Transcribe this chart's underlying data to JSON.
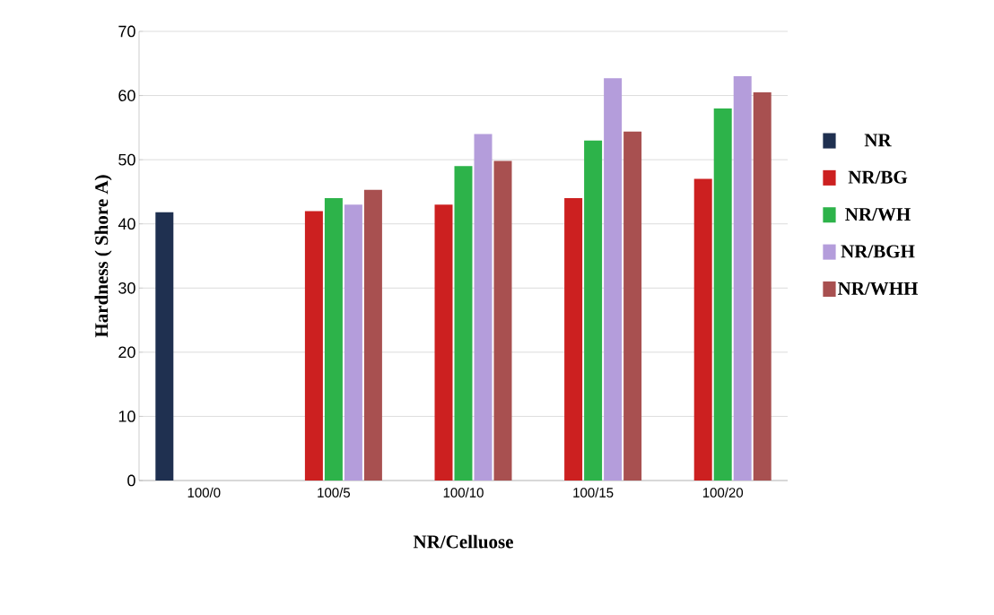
{
  "chart_data": {
    "type": "bar",
    "xlabel": "NR/Celluose",
    "ylabel": "Hardness ( Shore A)",
    "categories": [
      "100/0",
      "100/5",
      "100/10",
      "100/15",
      "100/20"
    ],
    "series": [
      {
        "name": "NR",
        "color": "#1f3050",
        "values": [
          41.8,
          null,
          null,
          null,
          null
        ]
      },
      {
        "name": "NR/BG",
        "color": "#cc2020",
        "values": [
          null,
          42,
          43,
          44,
          47
        ]
      },
      {
        "name": "NR/WH",
        "color": "#2db34a",
        "values": [
          null,
          44,
          49,
          53,
          58
        ]
      },
      {
        "name": "NR/BGH",
        "color": "#b49ddb",
        "values": [
          null,
          43,
          54,
          62.7,
          63
        ]
      },
      {
        "name": "NR/WHH",
        "color": "#a85050",
        "values": [
          null,
          45.3,
          49.8,
          54.4,
          60.5
        ]
      }
    ],
    "ylim": [
      0,
      70
    ],
    "yticks": [
      0,
      10,
      20,
      30,
      40,
      50,
      60,
      70
    ],
    "grid": "y",
    "legend": "right"
  }
}
